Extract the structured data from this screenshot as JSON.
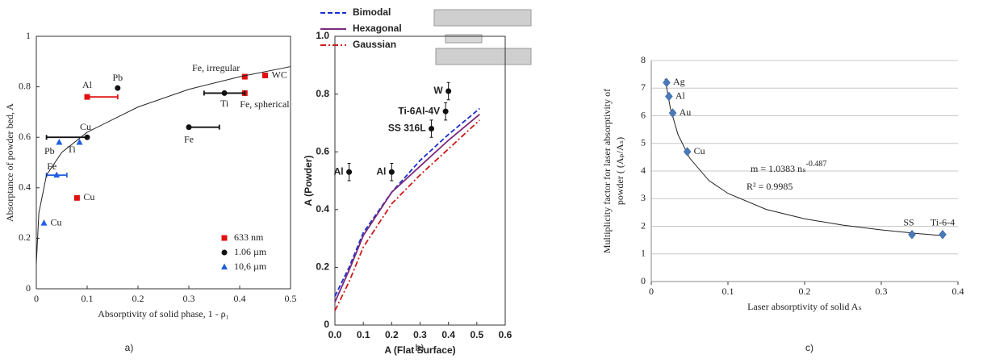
{
  "chart_data": [
    {
      "type": "scatter",
      "panel": "a)",
      "xlabel": "Absorptivity of solid phase, 1 - ρ₁",
      "ylabel": "Absorptance of powder bed, A",
      "xlim": [
        0,
        0.5
      ],
      "ylim": [
        0,
        1
      ],
      "xticks": [
        0,
        0.1,
        0.2,
        0.3,
        0.4,
        0.5
      ],
      "yticks": [
        0,
        0.2,
        0.4,
        0.6,
        0.8,
        1
      ],
      "frame": true,
      "grid": false,
      "legend": "lower right",
      "series": [
        {
          "name": "633 nm",
          "color": "#e01010",
          "marker": "square",
          "x": [
            0.1,
            0.08,
            0.41,
            0.41,
            0.45
          ],
          "values": [
            0.76,
            0.36,
            0.84,
            0.775,
            0.845
          ],
          "point_labels": [
            "Al",
            "Cu",
            "Fe, irregular",
            "Fe, spherical",
            "WC"
          ],
          "xerr": [
            [
              0.1,
              0.16
            ],
            null,
            null,
            null,
            null
          ]
        },
        {
          "name": "1.06 µm",
          "color": "#111111",
          "marker": "circle",
          "x": [
            0.16,
            0.1,
            0.3,
            0.37
          ],
          "values": [
            0.795,
            0.6,
            0.64,
            0.775
          ],
          "point_labels": [
            "Pb",
            "Cu",
            "Fe",
            "Ti"
          ],
          "xerr": [
            null,
            [
              0.02,
              0.1
            ],
            [
              0.3,
              0.36
            ],
            [
              0.33,
              0.41
            ]
          ]
        },
        {
          "name": "10,6 µm",
          "color": "#1f5fe0",
          "marker": "triangle",
          "x": [
            0.045,
            0.085,
            0.04,
            0.015
          ],
          "values": [
            0.58,
            0.58,
            0.45,
            0.26
          ],
          "point_labels": [
            "Pb",
            "Ti",
            "Fe",
            "Cu"
          ],
          "xerr": [
            null,
            null,
            [
              0.02,
              0.06
            ],
            null
          ]
        },
        {
          "color": "#222222",
          "mode": "line",
          "dash": "solid",
          "x": [
            0,
            0.005,
            0.02,
            0.05,
            0.1,
            0.2,
            0.3,
            0.4,
            0.5
          ],
          "values": [
            0.1,
            0.3,
            0.45,
            0.54,
            0.62,
            0.72,
            0.79,
            0.84,
            0.88
          ]
        }
      ]
    },
    {
      "type": "scatter",
      "panel": "b)",
      "xlabel": "A (Flat Surface)",
      "ylabel": "A (Powder)",
      "xlim": [
        0,
        0.6
      ],
      "ylim": [
        0,
        1
      ],
      "xticks": [
        {
          "value": 0,
          "label": "0.0"
        },
        0.1,
        0.2,
        0.3,
        0.4,
        0.5,
        0.6
      ],
      "yticks": [
        0,
        0.2,
        0.4,
        0.6,
        0.8,
        {
          "value": 1,
          "label": "1.0"
        }
      ],
      "frame": true,
      "grid": false,
      "legend": "upper left",
      "series": [
        {
          "name": "Bimodal",
          "color": "#1a2fd0",
          "mode": "line",
          "dash": "dashed",
          "x": [
            0,
            0.05,
            0.1,
            0.2,
            0.3,
            0.4,
            0.51
          ],
          "values": [
            0.1,
            0.2,
            0.32,
            0.46,
            0.57,
            0.66,
            0.75
          ]
        },
        {
          "name": "Hexagonal",
          "color": "#7a2a7a",
          "mode": "line",
          "dash": "solid",
          "x": [
            0,
            0.05,
            0.1,
            0.2,
            0.3,
            0.4,
            0.51
          ],
          "values": [
            0.08,
            0.19,
            0.31,
            0.46,
            0.55,
            0.64,
            0.73
          ]
        },
        {
          "name": "Gaussian",
          "color": "#d01818",
          "mode": "line",
          "dash": "dashdot",
          "x": [
            0,
            0.05,
            0.1,
            0.2,
            0.3,
            0.4,
            0.51
          ],
          "values": [
            0.05,
            0.15,
            0.27,
            0.42,
            0.52,
            0.61,
            0.71
          ]
        },
        {
          "color": "#111111",
          "marker": "circle",
          "x": [
            0.05,
            0.2,
            0.34,
            0.39,
            0.4
          ],
          "values": [
            0.53,
            0.53,
            0.68,
            0.74,
            0.81
          ],
          "point_labels": [
            "Al",
            "Al",
            "SS 316L",
            "Ti-6Al-4V",
            "W"
          ],
          "yerr": [
            [
              0.5,
              0.56
            ],
            [
              0.5,
              0.56
            ],
            [
              0.65,
              0.71
            ],
            [
              0.71,
              0.77
            ],
            [
              0.78,
              0.84
            ]
          ]
        }
      ]
    },
    {
      "type": "scatter",
      "panel": "c)",
      "xlabel": "Laser absorptivity of solid  Aₛ",
      "ylabel": [
        "Multiplicity factor for laser absorptivity of",
        "powder ( (Aₚ/Aₛ)"
      ],
      "xlim": [
        0,
        0.4
      ],
      "ylim": [
        0,
        8
      ],
      "xticks": [
        0,
        0.1,
        0.2,
        0.3,
        0.4
      ],
      "yticks": [
        0,
        1,
        2,
        3,
        4,
        5,
        6,
        7,
        8
      ],
      "frame": false,
      "grid": true,
      "annotations": [
        "m = 1.0383 nₛ",
        "-0.487",
        "R² = 0.9985"
      ],
      "series": [
        {
          "color": "#222222",
          "mode": "line",
          "dash": "solid",
          "x": [
            0.018,
            0.025,
            0.035,
            0.05,
            0.075,
            0.1,
            0.15,
            0.2,
            0.25,
            0.3,
            0.35,
            0.38
          ],
          "values": [
            7.34,
            6.26,
            5.31,
            4.47,
            3.66,
            3.19,
            2.61,
            2.27,
            2.04,
            1.87,
            1.73,
            1.66
          ]
        },
        {
          "color": "#4a7ab8",
          "marker": "diamond",
          "x": [
            0.02,
            0.023,
            0.028,
            0.047,
            0.34,
            0.38
          ],
          "values": [
            7.2,
            6.7,
            6.1,
            4.7,
            1.7,
            1.7
          ],
          "point_labels": [
            "Ag",
            "Al",
            "Au",
            "Cu",
            "SS",
            "Ti-6-4"
          ]
        }
      ]
    }
  ]
}
